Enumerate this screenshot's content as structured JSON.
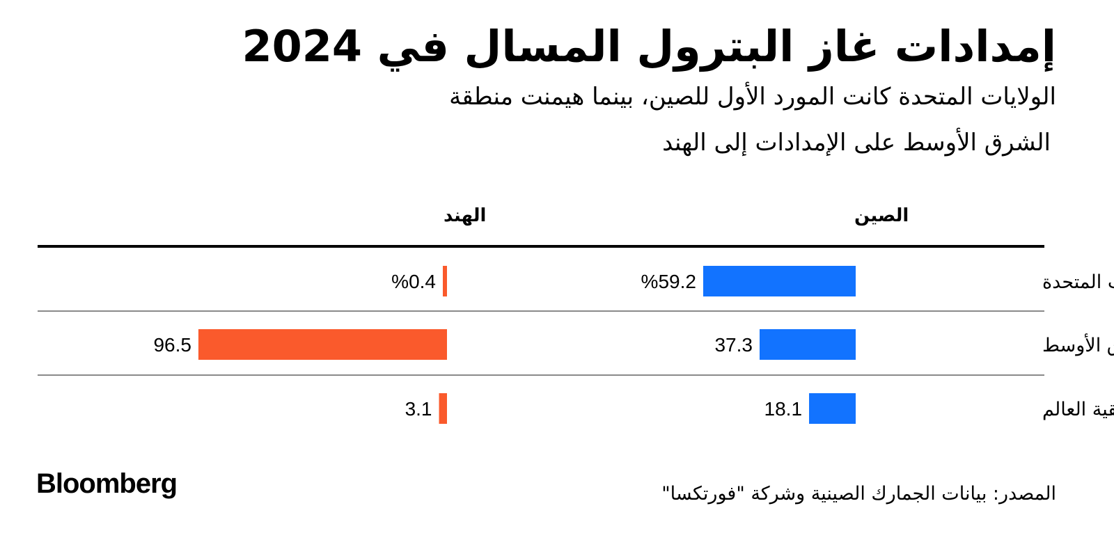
{
  "header": {
    "title": "إمدادات غاز البترول المسال في 2024",
    "subtitle_line1": "الولايات المتحدة كانت المورد الأول للصين، بينما هيمنت منطقة",
    "subtitle_line2": "الشرق الأوسط على الإمدادات إلى الهند"
  },
  "footer": {
    "source": "المصدر: بيانات الجمارك الصينية وشركة \"فورتكسا\"",
    "logo": "Bloomberg"
  },
  "colors": {
    "china": "#1273ff",
    "india": "#fa5a2c",
    "rule": "#000000",
    "divider": "#8a8a8a"
  },
  "chart_data": {
    "type": "bar",
    "orientation": "horizontal",
    "unit": "%",
    "categories": [
      "الولايات المتحدة",
      "الشرق الأوسط",
      "بقية العالم"
    ],
    "series": [
      {
        "name": "الصين",
        "values": [
          59.2,
          37.3,
          18.1
        ],
        "labels": [
          "%59.2",
          "37.3",
          "18.1"
        ],
        "color": "#1273ff"
      },
      {
        "name": "الهند",
        "values": [
          0.4,
          96.5,
          3.1
        ],
        "labels": [
          "%0.4",
          "96.5",
          "3.1"
        ],
        "color": "#fa5a2c"
      }
    ],
    "xlim": [
      0,
      100
    ],
    "grid": false,
    "legend": "none"
  }
}
